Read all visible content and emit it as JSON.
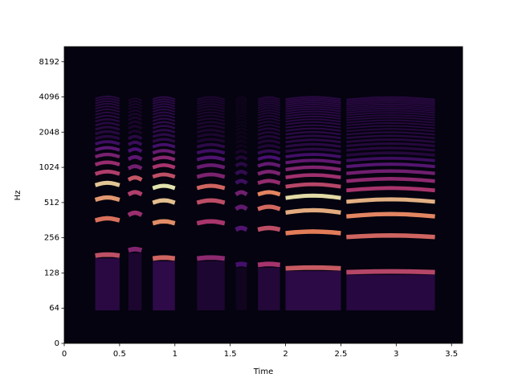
{
  "chart_data": {
    "type": "spectrogram",
    "x_label": "Time",
    "y_label": "Hz",
    "xlim": [
      0,
      3.6
    ],
    "xticks": [
      0,
      0.5,
      1,
      1.5,
      2,
      2.5,
      3,
      3.5
    ],
    "ylim": [
      0,
      11025
    ],
    "yticks": [
      0,
      64,
      128,
      256,
      512,
      1024,
      2048,
      4096,
      8192
    ],
    "yscale": "symlog",
    "linthresh": 64,
    "colormap": "magma",
    "segments": [
      {
        "start": 0.28,
        "end": 0.5,
        "f0": 180,
        "level": 0.9
      },
      {
        "start": 0.58,
        "end": 0.7,
        "f0": 200,
        "level": 0.6
      },
      {
        "start": 0.8,
        "end": 1.0,
        "f0": 170,
        "level": 1.0
      },
      {
        "start": 1.2,
        "end": 1.45,
        "f0": 170,
        "level": 0.65
      },
      {
        "start": 1.55,
        "end": 1.65,
        "f0": 150,
        "level": 0.35
      },
      {
        "start": 1.75,
        "end": 1.95,
        "f0": 150,
        "level": 0.75
      },
      {
        "start": 2.0,
        "end": 2.5,
        "f0": 140,
        "level": 0.95
      },
      {
        "start": 2.55,
        "end": 3.35,
        "f0": 130,
        "level": 0.85
      }
    ]
  }
}
